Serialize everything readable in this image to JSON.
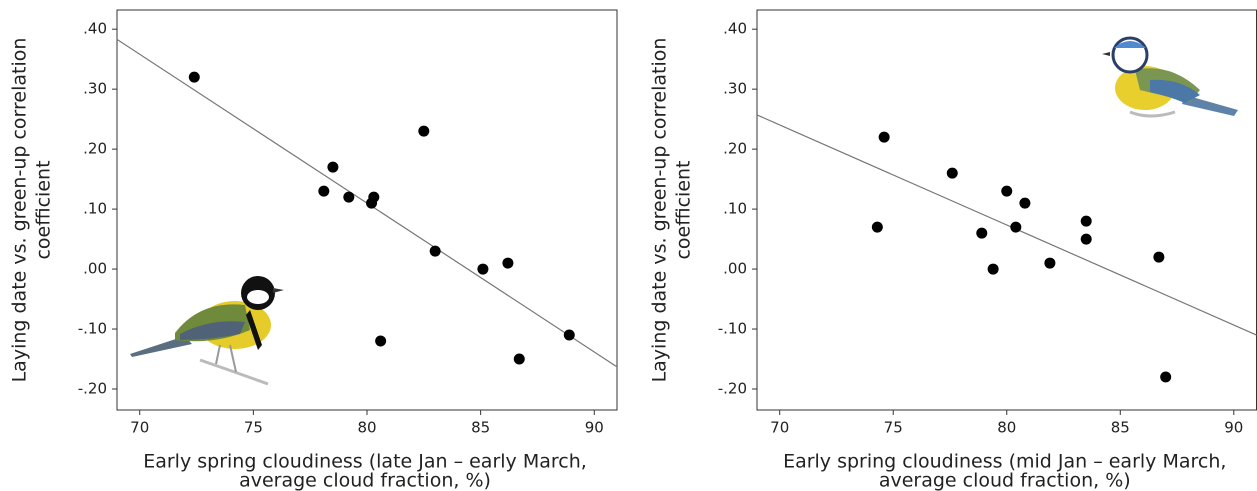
{
  "chart_data": [
    {
      "type": "scatter",
      "xlabel": [
        "Early spring cloudiness (late Jan – early March,",
        "average cloud fraction, %)"
      ],
      "ylabel": [
        "Laying date vs. green-up correlation",
        "coefficient"
      ],
      "xlim": [
        69,
        91
      ],
      "ylim": [
        -0.235,
        0.432
      ],
      "xticks": [
        70,
        75,
        80,
        85,
        90
      ],
      "yticks": [
        {
          "value": 0.4,
          "label": ".40"
        },
        {
          "value": 0.3,
          "label": ".30"
        },
        {
          "value": 0.2,
          "label": ".20"
        },
        {
          "value": 0.1,
          "label": ".10"
        },
        {
          "value": 0,
          "label": ".00"
        },
        {
          "value": -0.1,
          "label": "-.10"
        },
        {
          "value": -0.2,
          "label": "-.20"
        }
      ],
      "color": "#000000",
      "x": [
        72.4,
        78.5,
        78.1,
        79.2,
        80.3,
        80.2,
        82.5,
        83.0,
        85.1,
        86.2,
        80.6,
        86.7,
        88.9
      ],
      "values": [
        0.32,
        0.17,
        0.13,
        0.12,
        0.12,
        0.11,
        0.23,
        0.03,
        0.0,
        0.01,
        -0.12,
        -0.15,
        -0.11
      ],
      "fit": {
        "color": "#777777",
        "x": [
          69,
          91
        ],
        "values": [
          0.383,
          -0.163
        ]
      }
    },
    {
      "type": "scatter",
      "xlabel": [
        "Early spring cloudiness (mid Jan – early March,",
        "average cloud fraction, %)"
      ],
      "ylabel": [
        "Laying date vs. green-up correlation",
        "coefficient"
      ],
      "xlim": [
        69,
        91
      ],
      "ylim": [
        -0.235,
        0.432
      ],
      "xticks": [
        70,
        75,
        80,
        85,
        90
      ],
      "yticks": [
        {
          "value": 0.4,
          "label": ".40"
        },
        {
          "value": 0.3,
          "label": ".30"
        },
        {
          "value": 0.2,
          "label": ".20"
        },
        {
          "value": 0.1,
          "label": ".10"
        },
        {
          "value": 0,
          "label": ".00"
        },
        {
          "value": -0.1,
          "label": "-.10"
        },
        {
          "value": -0.2,
          "label": "-.20"
        }
      ],
      "color": "#000000",
      "x": [
        74.6,
        74.3,
        77.6,
        78.9,
        79.4,
        80.0,
        80.4,
        80.8,
        81.9,
        83.5,
        83.5,
        86.7,
        87.0
      ],
      "values": [
        0.22,
        0.07,
        0.16,
        0.06,
        0.0,
        0.13,
        0.07,
        0.11,
        0.01,
        0.08,
        0.05,
        0.02,
        -0.18
      ],
      "fit": {
        "color": "#777777",
        "x": [
          69,
          91
        ],
        "values": [
          0.257,
          -0.11
        ]
      }
    }
  ]
}
